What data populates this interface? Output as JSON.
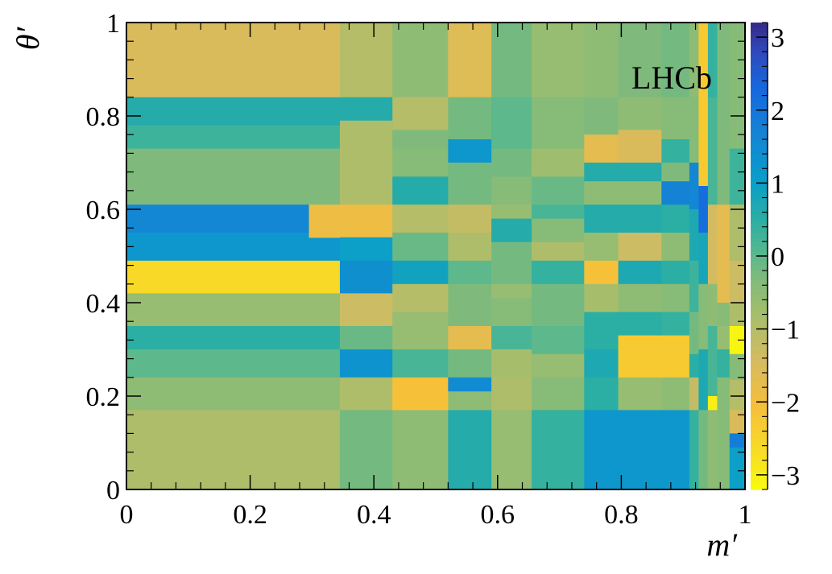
{
  "chart_data": {
    "type": "heatmap",
    "title": "",
    "xlabel": "m′",
    "ylabel": "θ′",
    "xlim": [
      0,
      1
    ],
    "ylim": [
      0,
      1
    ],
    "zlim": [
      -3.2,
      3.2
    ],
    "grid": false,
    "legend": "colorbar-right",
    "annotation": "LHCb",
    "x_ticks": [
      "0",
      "0.2",
      "0.4",
      "0.6",
      "0.8",
      "1"
    ],
    "x_tick_values": [
      0,
      0.2,
      0.4,
      0.6,
      0.8,
      1
    ],
    "y_ticks": [
      "0",
      "0.2",
      "0.4",
      "0.6",
      "0.8",
      "1"
    ],
    "y_tick_values": [
      0,
      0.2,
      0.4,
      0.6,
      0.8,
      1
    ],
    "colorbar_ticks": [
      "−3",
      "−2",
      "−1",
      "0",
      "1",
      "2",
      "3"
    ],
    "colorbar_tick_values": [
      -3,
      -2,
      -1,
      0,
      1,
      2,
      3
    ],
    "cells": [
      {
        "x0": 0.0,
        "x1": 0.345,
        "y0": 0.84,
        "y1": 1.0,
        "z": -1.5
      },
      {
        "x0": 0.0,
        "x1": 0.345,
        "y0": 0.78,
        "y1": 0.84,
        "z": 0.6
      },
      {
        "x0": 0.0,
        "x1": 0.345,
        "y0": 0.73,
        "y1": 0.78,
        "z": 0.3
      },
      {
        "x0": 0.0,
        "x1": 0.345,
        "y0": 0.61,
        "y1": 0.73,
        "z": -0.3
      },
      {
        "x0": 0.0,
        "x1": 0.295,
        "y0": 0.55,
        "y1": 0.61,
        "z": 1.6
      },
      {
        "x0": 0.0,
        "x1": 0.345,
        "y0": 0.49,
        "y1": 0.55,
        "z": 1.2
      },
      {
        "x0": 0.0,
        "x1": 0.345,
        "y0": 0.42,
        "y1": 0.49,
        "z": -2.6
      },
      {
        "x0": 0.0,
        "x1": 0.345,
        "y0": 0.35,
        "y1": 0.42,
        "z": -0.6
      },
      {
        "x0": 0.0,
        "x1": 0.345,
        "y0": 0.3,
        "y1": 0.35,
        "z": 0.5
      },
      {
        "x0": 0.0,
        "x1": 0.345,
        "y0": 0.24,
        "y1": 0.3,
        "z": 0.0
      },
      {
        "x0": 0.0,
        "x1": 0.345,
        "y0": 0.17,
        "y1": 0.24,
        "z": -0.5
      },
      {
        "x0": 0.0,
        "x1": 0.345,
        "y0": 0.0,
        "y1": 0.17,
        "z": -0.9
      },
      {
        "x0": 0.345,
        "x1": 0.43,
        "y0": 0.84,
        "y1": 1.0,
        "z": -1.0
      },
      {
        "x0": 0.345,
        "x1": 0.43,
        "y0": 0.79,
        "y1": 0.84,
        "z": 0.6
      },
      {
        "x0": 0.345,
        "x1": 0.43,
        "y0": 0.61,
        "y1": 0.79,
        "z": -0.9
      },
      {
        "x0": 0.295,
        "x1": 0.43,
        "y0": 0.54,
        "y1": 0.61,
        "z": -1.9
      },
      {
        "x0": 0.345,
        "x1": 0.43,
        "y0": 0.49,
        "y1": 0.54,
        "z": 1.0
      },
      {
        "x0": 0.345,
        "x1": 0.43,
        "y0": 0.42,
        "y1": 0.49,
        "z": 1.4
      },
      {
        "x0": 0.345,
        "x1": 0.43,
        "y0": 0.35,
        "y1": 0.42,
        "z": -1.3
      },
      {
        "x0": 0.345,
        "x1": 0.43,
        "y0": 0.3,
        "y1": 0.35,
        "z": -0.1
      },
      {
        "x0": 0.345,
        "x1": 0.43,
        "y0": 0.24,
        "y1": 0.3,
        "z": 1.3
      },
      {
        "x0": 0.345,
        "x1": 0.43,
        "y0": 0.17,
        "y1": 0.24,
        "z": -0.9
      },
      {
        "x0": 0.345,
        "x1": 0.43,
        "y0": 0.0,
        "y1": 0.17,
        "z": -0.2
      },
      {
        "x0": 0.43,
        "x1": 0.52,
        "y0": 0.84,
        "y1": 1.0,
        "z": -0.5
      },
      {
        "x0": 0.43,
        "x1": 0.52,
        "y0": 0.77,
        "y1": 0.84,
        "z": -1.0
      },
      {
        "x0": 0.43,
        "x1": 0.52,
        "y0": 0.73,
        "y1": 0.77,
        "z": -0.3
      },
      {
        "x0": 0.43,
        "x1": 0.52,
        "y0": 0.67,
        "y1": 0.73,
        "z": -0.4
      },
      {
        "x0": 0.43,
        "x1": 0.52,
        "y0": 0.61,
        "y1": 0.67,
        "z": 0.6
      },
      {
        "x0": 0.43,
        "x1": 0.52,
        "y0": 0.55,
        "y1": 0.61,
        "z": -1.0
      },
      {
        "x0": 0.43,
        "x1": 0.52,
        "y0": 0.49,
        "y1": 0.55,
        "z": -0.1
      },
      {
        "x0": 0.43,
        "x1": 0.52,
        "y0": 0.44,
        "y1": 0.49,
        "z": 0.9
      },
      {
        "x0": 0.43,
        "x1": 0.52,
        "y0": 0.38,
        "y1": 0.44,
        "z": -1.0
      },
      {
        "x0": 0.43,
        "x1": 0.52,
        "y0": 0.3,
        "y1": 0.38,
        "z": -0.6
      },
      {
        "x0": 0.43,
        "x1": 0.52,
        "y0": 0.24,
        "y1": 0.3,
        "z": 0.2
      },
      {
        "x0": 0.43,
        "x1": 0.52,
        "y0": 0.17,
        "y1": 0.24,
        "z": -2.1
      },
      {
        "x0": 0.43,
        "x1": 0.52,
        "y0": 0.0,
        "y1": 0.17,
        "z": -0.5
      },
      {
        "x0": 0.52,
        "x1": 0.59,
        "y0": 0.84,
        "y1": 1.0,
        "z": -1.6
      },
      {
        "x0": 0.52,
        "x1": 0.59,
        "y0": 0.75,
        "y1": 0.84,
        "z": -0.2
      },
      {
        "x0": 0.52,
        "x1": 0.59,
        "y0": 0.7,
        "y1": 0.75,
        "z": 1.2
      },
      {
        "x0": 0.52,
        "x1": 0.59,
        "y0": 0.61,
        "y1": 0.7,
        "z": -0.2
      },
      {
        "x0": 0.52,
        "x1": 0.59,
        "y0": 0.55,
        "y1": 0.61,
        "z": -1.2
      },
      {
        "x0": 0.52,
        "x1": 0.59,
        "y0": 0.49,
        "y1": 0.55,
        "z": -0.9
      },
      {
        "x0": 0.52,
        "x1": 0.59,
        "y0": 0.44,
        "y1": 0.49,
        "z": 0.0
      },
      {
        "x0": 0.52,
        "x1": 0.59,
        "y0": 0.35,
        "y1": 0.44,
        "z": -0.3
      },
      {
        "x0": 0.52,
        "x1": 0.59,
        "y0": 0.3,
        "y1": 0.35,
        "z": -1.7
      },
      {
        "x0": 0.52,
        "x1": 0.59,
        "y0": 0.24,
        "y1": 0.3,
        "z": -0.2
      },
      {
        "x0": 0.52,
        "x1": 0.59,
        "y0": 0.21,
        "y1": 0.24,
        "z": 1.5
      },
      {
        "x0": 0.52,
        "x1": 0.59,
        "y0": 0.17,
        "y1": 0.21,
        "z": -0.5
      },
      {
        "x0": 0.52,
        "x1": 0.59,
        "y0": 0.0,
        "y1": 0.17,
        "z": 0.6
      },
      {
        "x0": 0.59,
        "x1": 0.655,
        "y0": 0.84,
        "y1": 1.0,
        "z": -0.2
      },
      {
        "x0": 0.59,
        "x1": 0.655,
        "y0": 0.73,
        "y1": 0.84,
        "z": 0.0
      },
      {
        "x0": 0.59,
        "x1": 0.655,
        "y0": 0.67,
        "y1": 0.73,
        "z": -0.2
      },
      {
        "x0": 0.59,
        "x1": 0.655,
        "y0": 0.61,
        "y1": 0.67,
        "z": -0.4
      },
      {
        "x0": 0.59,
        "x1": 0.655,
        "y0": 0.58,
        "y1": 0.61,
        "z": -0.6
      },
      {
        "x0": 0.59,
        "x1": 0.655,
        "y0": 0.53,
        "y1": 0.58,
        "z": 0.6
      },
      {
        "x0": 0.59,
        "x1": 0.655,
        "y0": 0.44,
        "y1": 0.53,
        "z": -0.2
      },
      {
        "x0": 0.59,
        "x1": 0.655,
        "y0": 0.41,
        "y1": 0.44,
        "z": -0.6
      },
      {
        "x0": 0.59,
        "x1": 0.655,
        "y0": 0.35,
        "y1": 0.41,
        "z": -0.4
      },
      {
        "x0": 0.59,
        "x1": 0.655,
        "y0": 0.3,
        "y1": 0.35,
        "z": 0.2
      },
      {
        "x0": 0.59,
        "x1": 0.655,
        "y0": 0.24,
        "y1": 0.3,
        "z": -0.8
      },
      {
        "x0": 0.59,
        "x1": 0.655,
        "y0": 0.17,
        "y1": 0.24,
        "z": -0.9
      },
      {
        "x0": 0.59,
        "x1": 0.655,
        "y0": 0.0,
        "y1": 0.17,
        "z": -0.6
      },
      {
        "x0": 0.655,
        "x1": 0.74,
        "y0": 0.84,
        "y1": 1.0,
        "z": -0.6
      },
      {
        "x0": 0.655,
        "x1": 0.74,
        "y0": 0.73,
        "y1": 0.84,
        "z": -0.4
      },
      {
        "x0": 0.655,
        "x1": 0.74,
        "y0": 0.67,
        "y1": 0.73,
        "z": -0.7
      },
      {
        "x0": 0.655,
        "x1": 0.74,
        "y0": 0.61,
        "y1": 0.67,
        "z": -0.1
      },
      {
        "x0": 0.655,
        "x1": 0.74,
        "y0": 0.58,
        "y1": 0.61,
        "z": 0.2
      },
      {
        "x0": 0.655,
        "x1": 0.74,
        "y0": 0.53,
        "y1": 0.58,
        "z": -0.4
      },
      {
        "x0": 0.655,
        "x1": 0.74,
        "y0": 0.49,
        "y1": 0.53,
        "z": -0.9
      },
      {
        "x0": 0.655,
        "x1": 0.74,
        "y0": 0.44,
        "y1": 0.49,
        "z": 0.4
      },
      {
        "x0": 0.655,
        "x1": 0.74,
        "y0": 0.35,
        "y1": 0.44,
        "z": -0.2
      },
      {
        "x0": 0.655,
        "x1": 0.74,
        "y0": 0.29,
        "y1": 0.35,
        "z": 0.0
      },
      {
        "x0": 0.655,
        "x1": 0.74,
        "y0": 0.24,
        "y1": 0.29,
        "z": -0.6
      },
      {
        "x0": 0.655,
        "x1": 0.74,
        "y0": 0.17,
        "y1": 0.24,
        "z": -0.4
      },
      {
        "x0": 0.655,
        "x1": 0.74,
        "y0": 0.0,
        "y1": 0.17,
        "z": 0.4
      },
      {
        "x0": 0.74,
        "x1": 0.795,
        "y0": 0.84,
        "y1": 1.0,
        "z": -0.5
      },
      {
        "x0": 0.74,
        "x1": 0.795,
        "y0": 0.76,
        "y1": 0.84,
        "z": -0.3
      },
      {
        "x0": 0.74,
        "x1": 0.795,
        "y0": 0.7,
        "y1": 0.76,
        "z": -1.7
      },
      {
        "x0": 0.74,
        "x1": 0.795,
        "y0": 0.66,
        "y1": 0.7,
        "z": 0.6
      },
      {
        "x0": 0.74,
        "x1": 0.795,
        "y0": 0.61,
        "y1": 0.66,
        "z": -0.5
      },
      {
        "x0": 0.74,
        "x1": 0.795,
        "y0": 0.55,
        "y1": 0.61,
        "z": 0.6
      },
      {
        "x0": 0.74,
        "x1": 0.795,
        "y0": 0.49,
        "y1": 0.55,
        "z": -0.6
      },
      {
        "x0": 0.74,
        "x1": 0.795,
        "y0": 0.44,
        "y1": 0.49,
        "z": -2.1
      },
      {
        "x0": 0.74,
        "x1": 0.795,
        "y0": 0.38,
        "y1": 0.44,
        "z": -0.8
      },
      {
        "x0": 0.74,
        "x1": 0.795,
        "y0": 0.3,
        "y1": 0.38,
        "z": 0.5
      },
      {
        "x0": 0.74,
        "x1": 0.795,
        "y0": 0.24,
        "y1": 0.3,
        "z": 0.7
      },
      {
        "x0": 0.74,
        "x1": 0.795,
        "y0": 0.17,
        "y1": 0.24,
        "z": 0.5
      },
      {
        "x0": 0.74,
        "x1": 0.795,
        "y0": 0.0,
        "y1": 0.17,
        "z": 1.2
      },
      {
        "x0": 0.795,
        "x1": 0.865,
        "y0": 0.84,
        "y1": 1.0,
        "z": -0.3
      },
      {
        "x0": 0.795,
        "x1": 0.865,
        "y0": 0.77,
        "y1": 0.84,
        "z": -0.5
      },
      {
        "x0": 0.795,
        "x1": 0.865,
        "y0": 0.7,
        "y1": 0.77,
        "z": -1.5
      },
      {
        "x0": 0.795,
        "x1": 0.865,
        "y0": 0.66,
        "y1": 0.7,
        "z": 0.6
      },
      {
        "x0": 0.795,
        "x1": 0.865,
        "y0": 0.61,
        "y1": 0.66,
        "z": -0.5
      },
      {
        "x0": 0.795,
        "x1": 0.865,
        "y0": 0.55,
        "y1": 0.61,
        "z": 0.6
      },
      {
        "x0": 0.795,
        "x1": 0.865,
        "y0": 0.49,
        "y1": 0.55,
        "z": -1.3
      },
      {
        "x0": 0.795,
        "x1": 0.865,
        "y0": 0.44,
        "y1": 0.49,
        "z": 0.7
      },
      {
        "x0": 0.795,
        "x1": 0.865,
        "y0": 0.38,
        "y1": 0.44,
        "z": -0.5
      },
      {
        "x0": 0.795,
        "x1": 0.865,
        "y0": 0.33,
        "y1": 0.38,
        "z": 0.5
      },
      {
        "x0": 0.795,
        "x1": 0.865,
        "y0": 0.24,
        "y1": 0.33,
        "z": -2.3
      },
      {
        "x0": 0.795,
        "x1": 0.865,
        "y0": 0.17,
        "y1": 0.24,
        "z": -0.6
      },
      {
        "x0": 0.795,
        "x1": 0.865,
        "y0": 0.0,
        "y1": 0.17,
        "z": 1.2
      },
      {
        "x0": 0.865,
        "x1": 0.91,
        "y0": 0.84,
        "y1": 1.0,
        "z": -0.2
      },
      {
        "x0": 0.865,
        "x1": 0.91,
        "y0": 0.75,
        "y1": 0.84,
        "z": -0.4
      },
      {
        "x0": 0.865,
        "x1": 0.91,
        "y0": 0.7,
        "y1": 0.75,
        "z": 0.4
      },
      {
        "x0": 0.865,
        "x1": 0.91,
        "y0": 0.66,
        "y1": 0.7,
        "z": -0.3
      },
      {
        "x0": 0.865,
        "x1": 0.91,
        "y0": 0.61,
        "y1": 0.66,
        "z": 1.7
      },
      {
        "x0": 0.865,
        "x1": 0.91,
        "y0": 0.55,
        "y1": 0.61,
        "z": 0.5
      },
      {
        "x0": 0.865,
        "x1": 0.91,
        "y0": 0.49,
        "y1": 0.55,
        "z": -0.5
      },
      {
        "x0": 0.865,
        "x1": 0.91,
        "y0": 0.44,
        "y1": 0.49,
        "z": 0.5
      },
      {
        "x0": 0.865,
        "x1": 0.91,
        "y0": 0.38,
        "y1": 0.44,
        "z": -0.4
      },
      {
        "x0": 0.865,
        "x1": 0.91,
        "y0": 0.33,
        "y1": 0.38,
        "z": 0.4
      },
      {
        "x0": 0.865,
        "x1": 0.91,
        "y0": 0.24,
        "y1": 0.33,
        "z": -2.3
      },
      {
        "x0": 0.865,
        "x1": 0.91,
        "y0": 0.17,
        "y1": 0.24,
        "z": -0.5
      },
      {
        "x0": 0.865,
        "x1": 0.91,
        "y0": 0.0,
        "y1": 0.17,
        "z": 1.2
      },
      {
        "x0": 0.91,
        "x1": 0.925,
        "y0": 0.84,
        "y1": 1.0,
        "z": -0.5
      },
      {
        "x0": 0.91,
        "x1": 0.925,
        "y0": 0.7,
        "y1": 0.84,
        "z": -0.4
      },
      {
        "x0": 0.91,
        "x1": 0.925,
        "y0": 0.6,
        "y1": 0.7,
        "z": 1.6
      },
      {
        "x0": 0.91,
        "x1": 0.925,
        "y0": 0.49,
        "y1": 0.6,
        "z": 0.7
      },
      {
        "x0": 0.91,
        "x1": 0.925,
        "y0": 0.38,
        "y1": 0.49,
        "z": 0.3
      },
      {
        "x0": 0.91,
        "x1": 0.925,
        "y0": 0.29,
        "y1": 0.38,
        "z": -0.2
      },
      {
        "x0": 0.91,
        "x1": 0.925,
        "y0": 0.24,
        "y1": 0.29,
        "z": 0.5
      },
      {
        "x0": 0.91,
        "x1": 0.925,
        "y0": 0.17,
        "y1": 0.24,
        "z": -1.2
      },
      {
        "x0": 0.91,
        "x1": 0.925,
        "y0": 0.0,
        "y1": 0.17,
        "z": 0.4
      },
      {
        "x0": 0.925,
        "x1": 0.94,
        "y0": 0.65,
        "y1": 1.0,
        "z": -2.3
      },
      {
        "x0": 0.925,
        "x1": 0.94,
        "y0": 0.55,
        "y1": 0.65,
        "z": 2.2
      },
      {
        "x0": 0.925,
        "x1": 0.94,
        "y0": 0.44,
        "y1": 0.55,
        "z": 0.8
      },
      {
        "x0": 0.925,
        "x1": 0.94,
        "y0": 0.3,
        "y1": 0.44,
        "z": -0.4
      },
      {
        "x0": 0.925,
        "x1": 0.94,
        "y0": 0.17,
        "y1": 0.3,
        "z": 0.7
      },
      {
        "x0": 0.925,
        "x1": 0.94,
        "y0": 0.0,
        "y1": 0.17,
        "z": -0.2
      },
      {
        "x0": 0.94,
        "x1": 0.955,
        "y0": 0.84,
        "y1": 1.0,
        "z": 0.4
      },
      {
        "x0": 0.94,
        "x1": 0.955,
        "y0": 0.61,
        "y1": 0.84,
        "z": 0.2
      },
      {
        "x0": 0.94,
        "x1": 0.955,
        "y0": 0.44,
        "y1": 0.61,
        "z": -1.4
      },
      {
        "x0": 0.94,
        "x1": 0.955,
        "y0": 0.35,
        "y1": 0.44,
        "z": -0.5
      },
      {
        "x0": 0.94,
        "x1": 0.955,
        "y0": 0.2,
        "y1": 0.35,
        "z": 0.2
      },
      {
        "x0": 0.94,
        "x1": 0.955,
        "y0": 0.17,
        "y1": 0.2,
        "z": -3.0
      },
      {
        "x0": 0.94,
        "x1": 0.955,
        "y0": 0.0,
        "y1": 0.17,
        "z": -0.5
      },
      {
        "x0": 0.955,
        "x1": 0.975,
        "y0": 0.61,
        "y1": 1.0,
        "z": -0.3
      },
      {
        "x0": 0.955,
        "x1": 0.975,
        "y0": 0.4,
        "y1": 0.61,
        "z": -1.7
      },
      {
        "x0": 0.955,
        "x1": 0.975,
        "y0": 0.35,
        "y1": 0.4,
        "z": -0.4
      },
      {
        "x0": 0.955,
        "x1": 0.975,
        "y0": 0.3,
        "y1": 0.35,
        "z": -0.6
      },
      {
        "x0": 0.955,
        "x1": 0.975,
        "y0": 0.24,
        "y1": 0.3,
        "z": 0.4
      },
      {
        "x0": 0.955,
        "x1": 0.975,
        "y0": 0.0,
        "y1": 0.24,
        "z": -0.4
      },
      {
        "x0": 0.975,
        "x1": 1.155,
        "y0": 0.73,
        "y1": 1.0,
        "z": -0.4
      },
      {
        "x0": 0.975,
        "x1": 1.155,
        "y0": 0.61,
        "y1": 0.73,
        "z": 0.3
      },
      {
        "x0": 0.975,
        "x1": 1.155,
        "y0": 0.49,
        "y1": 0.61,
        "z": -0.9
      },
      {
        "x0": 0.975,
        "x1": 1.155,
        "y0": 0.4,
        "y1": 0.49,
        "z": -1.3
      },
      {
        "x0": 0.975,
        "x1": 1.155,
        "y0": 0.35,
        "y1": 0.4,
        "z": -0.9
      },
      {
        "x0": 0.975,
        "x1": 1.155,
        "y0": 0.29,
        "y1": 0.35,
        "z": -3.1
      },
      {
        "x0": 0.975,
        "x1": 1.155,
        "y0": 0.235,
        "y1": 0.29,
        "z": -0.4
      },
      {
        "x0": 0.975,
        "x1": 1.155,
        "y0": 0.17,
        "y1": 0.235,
        "z": -1.0
      },
      {
        "x0": 0.975,
        "x1": 1.155,
        "y0": 0.12,
        "y1": 0.17,
        "z": -1.5
      },
      {
        "x0": 0.975,
        "x1": 1.155,
        "y0": 0.09,
        "y1": 0.12,
        "z": 1.8
      },
      {
        "x0": 0.975,
        "x1": 1.155,
        "y0": 0.0,
        "y1": 0.09,
        "z": 1.0
      }
    ]
  }
}
